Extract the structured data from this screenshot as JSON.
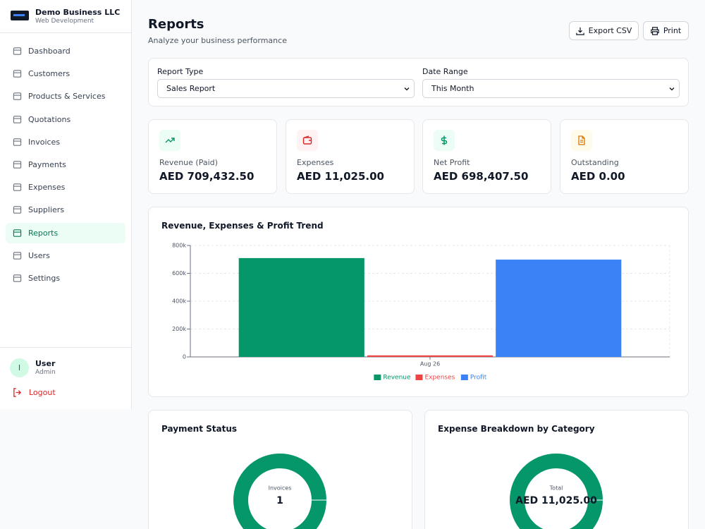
{
  "sidebar": {
    "company": "Demo Business LLC",
    "subtitle": "Web Development",
    "nav": [
      "Dashboard",
      "Customers",
      "Products & Services",
      "Quotations",
      "Invoices",
      "Payments",
      "Expenses",
      "Suppliers",
      "Reports",
      "Users",
      "Settings"
    ],
    "user": {
      "avatar": "I",
      "name": "User",
      "role": "Admin"
    },
    "logout": "Logout"
  },
  "header": {
    "title": "Reports",
    "subtitle": "Analyze your business performance",
    "buttons": [
      "Export CSV",
      "Print"
    ]
  },
  "filters": [
    {
      "label": "Report Type",
      "value": "Sales Report"
    },
    {
      "label": "Date Range",
      "value": "This Month"
    }
  ],
  "stats": [
    {
      "label": "Revenue (Paid)",
      "value": "AED 709,432.50"
    },
    {
      "label": "Expenses",
      "value": "AED 11,025.00"
    },
    {
      "label": "Net Profit",
      "value": "AED 698,407.50"
    },
    {
      "label": "Outstanding",
      "value": "AED 0.00"
    }
  ],
  "chart_data": [
    {
      "type": "bar",
      "title": "Revenue, Expenses & Profit Trend",
      "categories": [
        "Aug 26"
      ],
      "series": [
        {
          "name": "Revenue",
          "color": "#059669",
          "values": [
            709432.5
          ]
        },
        {
          "name": "Expenses",
          "color": "#ef4444",
          "values": [
            11025
          ]
        },
        {
          "name": "Profit",
          "color": "#3b82f6",
          "values": [
            698407.5
          ]
        }
      ],
      "ylim": [
        0,
        800000
      ],
      "yticks": [
        0,
        {
          "value": 200000,
          "label": "200k"
        },
        {
          "value": 400000,
          "label": "400k"
        },
        {
          "value": 600000,
          "label": "600k"
        },
        {
          "value": 800000,
          "label": "800k"
        }
      ],
      "grid": true,
      "legend": "bottom"
    },
    {
      "type": "donut",
      "title": "Payment Status",
      "center_label": "Invoices",
      "values": [
        1
      ],
      "color": "#059669"
    },
    {
      "type": "donut",
      "title": "Expense Breakdown by Category",
      "center_label": "Total",
      "values": [
        11025
      ],
      "value_labels": [
        "AED 11,025.00"
      ],
      "color": "#059669"
    }
  ]
}
